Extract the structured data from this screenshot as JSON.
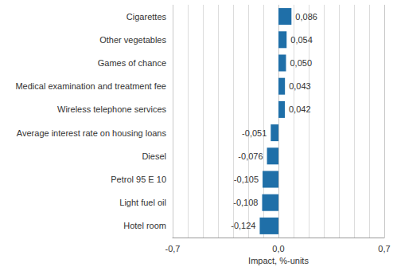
{
  "chart_data": {
    "type": "bar",
    "orientation": "horizontal",
    "categories": [
      "Cigarettes",
      "Other vegetables",
      "Games of chance",
      "Medical examination and treatment fee",
      "Wireless telephone services",
      "Average interest rate on housing loans",
      "Diesel",
      "Petrol 95 E 10",
      "Light fuel oil",
      "Hotel room"
    ],
    "values": [
      0.086,
      0.054,
      0.05,
      0.043,
      0.042,
      -0.051,
      -0.076,
      -0.105,
      -0.108,
      -0.124
    ],
    "value_labels": [
      "0,086",
      "0,054",
      "0,050",
      "0,043",
      "0,042",
      "-0,051",
      "-0,076",
      "-0,105",
      "-0,108",
      "-0,124"
    ],
    "color": "#1f6fa8",
    "x_label": "Impact, %-units",
    "xlim": [
      -0.7,
      0.7
    ],
    "xticks": [
      {
        "value": -0.7,
        "label": "-0,7"
      },
      {
        "value": 0,
        "label": "0,0"
      },
      {
        "value": 0.7,
        "label": "0,7"
      }
    ],
    "grid": true,
    "data_labels": true
  }
}
